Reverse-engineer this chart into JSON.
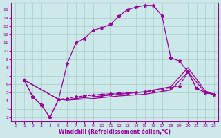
{
  "xlabel": "Windchill (Refroidissement éolien,°C)",
  "xlim": [
    -0.5,
    23.5
  ],
  "ylim": [
    1.5,
    15.8
  ],
  "xticks": [
    0,
    1,
    2,
    3,
    4,
    5,
    6,
    7,
    8,
    9,
    10,
    11,
    12,
    13,
    14,
    15,
    16,
    17,
    18,
    19,
    20,
    21,
    22,
    23
  ],
  "yticks": [
    2,
    3,
    4,
    5,
    6,
    7,
    8,
    9,
    10,
    11,
    12,
    13,
    14,
    15
  ],
  "bg_color": "#cce8e8",
  "line_color": "#990099",
  "grid_color": "#aacccc",
  "curve1": {
    "x": [
      1,
      2,
      3,
      4,
      5,
      6,
      7,
      8,
      9,
      10,
      11,
      12,
      13,
      14,
      15,
      16,
      17,
      18,
      19,
      20,
      21,
      22,
      23
    ],
    "y": [
      6.5,
      4.5,
      3.5,
      2.0,
      4.2,
      8.5,
      11.0,
      11.5,
      12.5,
      12.8,
      13.2,
      14.2,
      15.0,
      15.3,
      15.5,
      15.5,
      14.2,
      9.2,
      8.8,
      7.5,
      5.5,
      5.0,
      4.8
    ]
  },
  "curve2": {
    "x": [
      1,
      2,
      3,
      4,
      5,
      6,
      7,
      8,
      9,
      10,
      11,
      12,
      13,
      14,
      15,
      16,
      17,
      18,
      19,
      20,
      21,
      22,
      23
    ],
    "y": [
      6.5,
      4.5,
      3.5,
      2.0,
      4.2,
      4.3,
      4.5,
      4.6,
      4.7,
      4.8,
      4.85,
      4.9,
      4.95,
      5.0,
      5.1,
      5.2,
      5.4,
      5.6,
      5.8,
      7.5,
      5.5,
      5.0,
      4.8
    ]
  },
  "curve3": {
    "x": [
      1,
      5,
      6,
      9,
      12,
      15,
      18,
      20,
      22,
      23
    ],
    "y": [
      6.5,
      4.2,
      4.2,
      4.5,
      4.8,
      5.1,
      5.7,
      8.0,
      5.2,
      4.8
    ]
  },
  "curve4": {
    "x": [
      1,
      5,
      6,
      9,
      12,
      15,
      18,
      20,
      22,
      23
    ],
    "y": [
      6.5,
      4.2,
      4.1,
      4.3,
      4.6,
      4.8,
      5.3,
      7.5,
      5.0,
      4.8
    ]
  }
}
